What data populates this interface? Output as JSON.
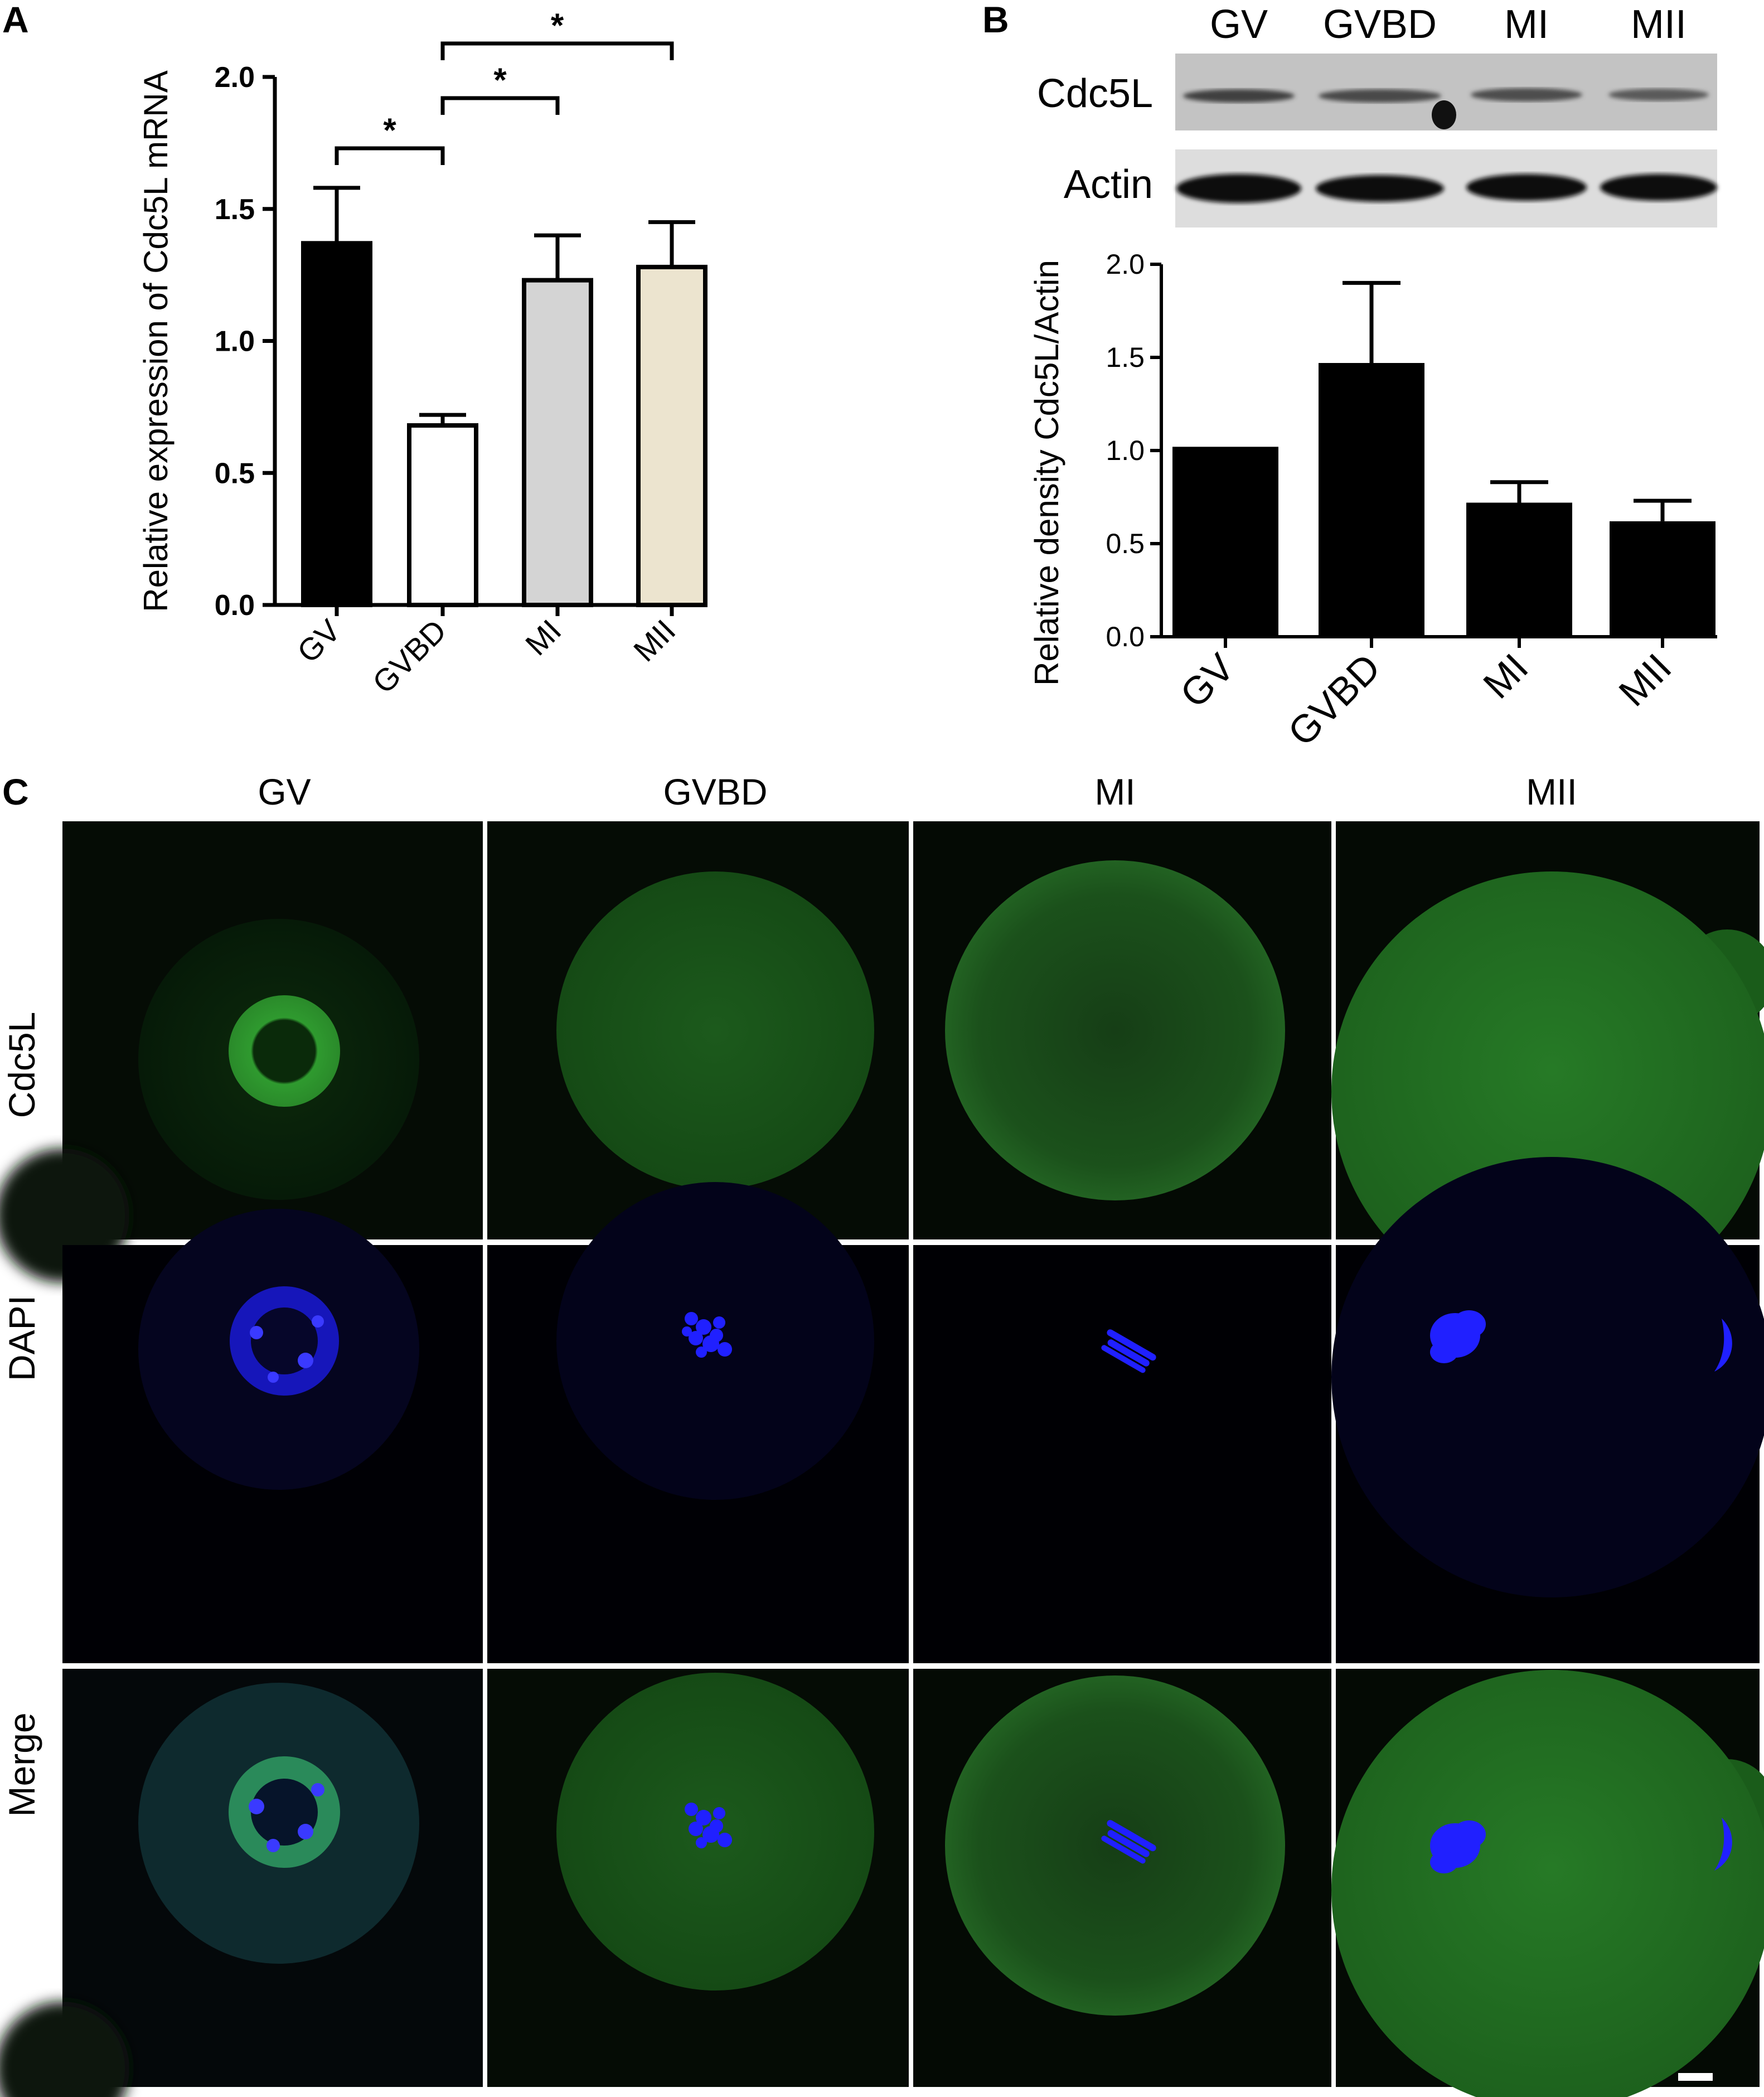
{
  "panels": {
    "a": {
      "letter": "A"
    },
    "b": {
      "letter": "B"
    },
    "c": {
      "letter": "C"
    }
  },
  "western_blot": {
    "lanes": [
      "GV",
      "GVBD",
      "MI",
      "MII"
    ],
    "rows": [
      "Cdc5L",
      "Actin"
    ]
  },
  "microscopy": {
    "columns": [
      "GV",
      "GVBD",
      "MI",
      "MII"
    ],
    "rows": [
      "Cdc5L",
      "DAPI",
      "Merge"
    ],
    "channel_colors": {
      "Cdc5L": "#1f7a1f",
      "DAPI": "#1a1aff"
    }
  },
  "chart_data": [
    {
      "type": "bar",
      "panel": "A",
      "categories": [
        "GV",
        "GVBD",
        "MI",
        "MII"
      ],
      "values": [
        1.37,
        0.68,
        1.23,
        1.28
      ],
      "errors": [
        0.21,
        0.04,
        0.17,
        0.17
      ],
      "colors": [
        "#000000",
        "#ffffff",
        "#d4d4d4",
        "#ece4cf"
      ],
      "ylabel": "Relative expression of Cdc5L mRNA",
      "ylim": [
        0,
        2.0
      ],
      "yticks": [
        "0.0",
        "0.5",
        "1.0",
        "1.5",
        "2.0"
      ],
      "significance": [
        {
          "from": "GV",
          "to": "GVBD",
          "label": "*"
        },
        {
          "from": "GVBD",
          "to": "MI",
          "label": "*"
        },
        {
          "from": "GVBD",
          "to": "MII",
          "label": "*"
        }
      ]
    },
    {
      "type": "bar",
      "panel": "B",
      "categories": [
        "GV",
        "GVBD",
        "MI",
        "MII"
      ],
      "values": [
        1.02,
        1.47,
        0.72,
        0.62
      ],
      "errors": [
        0,
        0.43,
        0.11,
        0.11
      ],
      "colors": [
        "#000000",
        "#000000",
        "#000000",
        "#000000"
      ],
      "ylabel": "Relative density Cdc5L/Actin",
      "ylim": [
        0,
        2.0
      ],
      "yticks": [
        "0.0",
        "0.5",
        "1.0",
        "1.5",
        "2.0"
      ]
    }
  ]
}
